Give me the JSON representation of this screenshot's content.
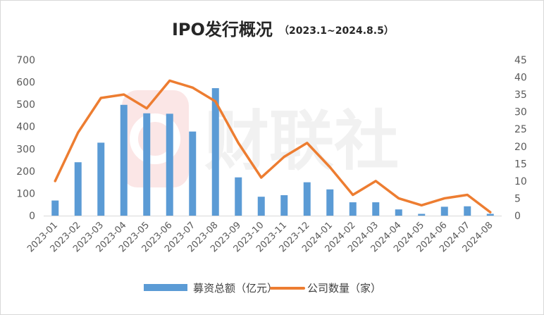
{
  "chart_data": {
    "type": "bar",
    "title": "IPO发行概况",
    "subtitle": "（2023.1~2024.8.5）",
    "watermark_text": "财联社",
    "categories": [
      "2023-01",
      "2023-02",
      "2023-03",
      "2023-04",
      "2023-05",
      "2023-06",
      "2023-07",
      "2023-08",
      "2023-09",
      "2023-10",
      "2023-11",
      "2023-12",
      "2024-01",
      "2024-02",
      "2024-03",
      "2024-04",
      "2024-05",
      "2024-06",
      "2024-07",
      "2024-08"
    ],
    "series": [
      {
        "name": "募资总额（亿元）",
        "type": "bar",
        "axis": "left",
        "color": "#5b9bd5",
        "values": [
          68,
          240,
          328,
          498,
          460,
          458,
          378,
          573,
          172,
          85,
          92,
          150,
          118,
          60,
          60,
          28,
          8,
          40,
          42,
          8
        ]
      },
      {
        "name": "公司数量（家）",
        "type": "line",
        "axis": "right",
        "color": "#ed7d31",
        "values": [
          10,
          24,
          34,
          35,
          31,
          39,
          37,
          33,
          21,
          11,
          17,
          21,
          14,
          6,
          10,
          5,
          3,
          5,
          6,
          1
        ]
      }
    ],
    "y_left": {
      "min": 0,
      "max": 700,
      "ticks": [
        0,
        100,
        200,
        300,
        400,
        500,
        600,
        700
      ]
    },
    "y_right": {
      "min": 0,
      "max": 45,
      "ticks": [
        0,
        5,
        10,
        15,
        20,
        25,
        30,
        35,
        40,
        45
      ]
    },
    "grid": false,
    "legend_position": "bottom"
  }
}
